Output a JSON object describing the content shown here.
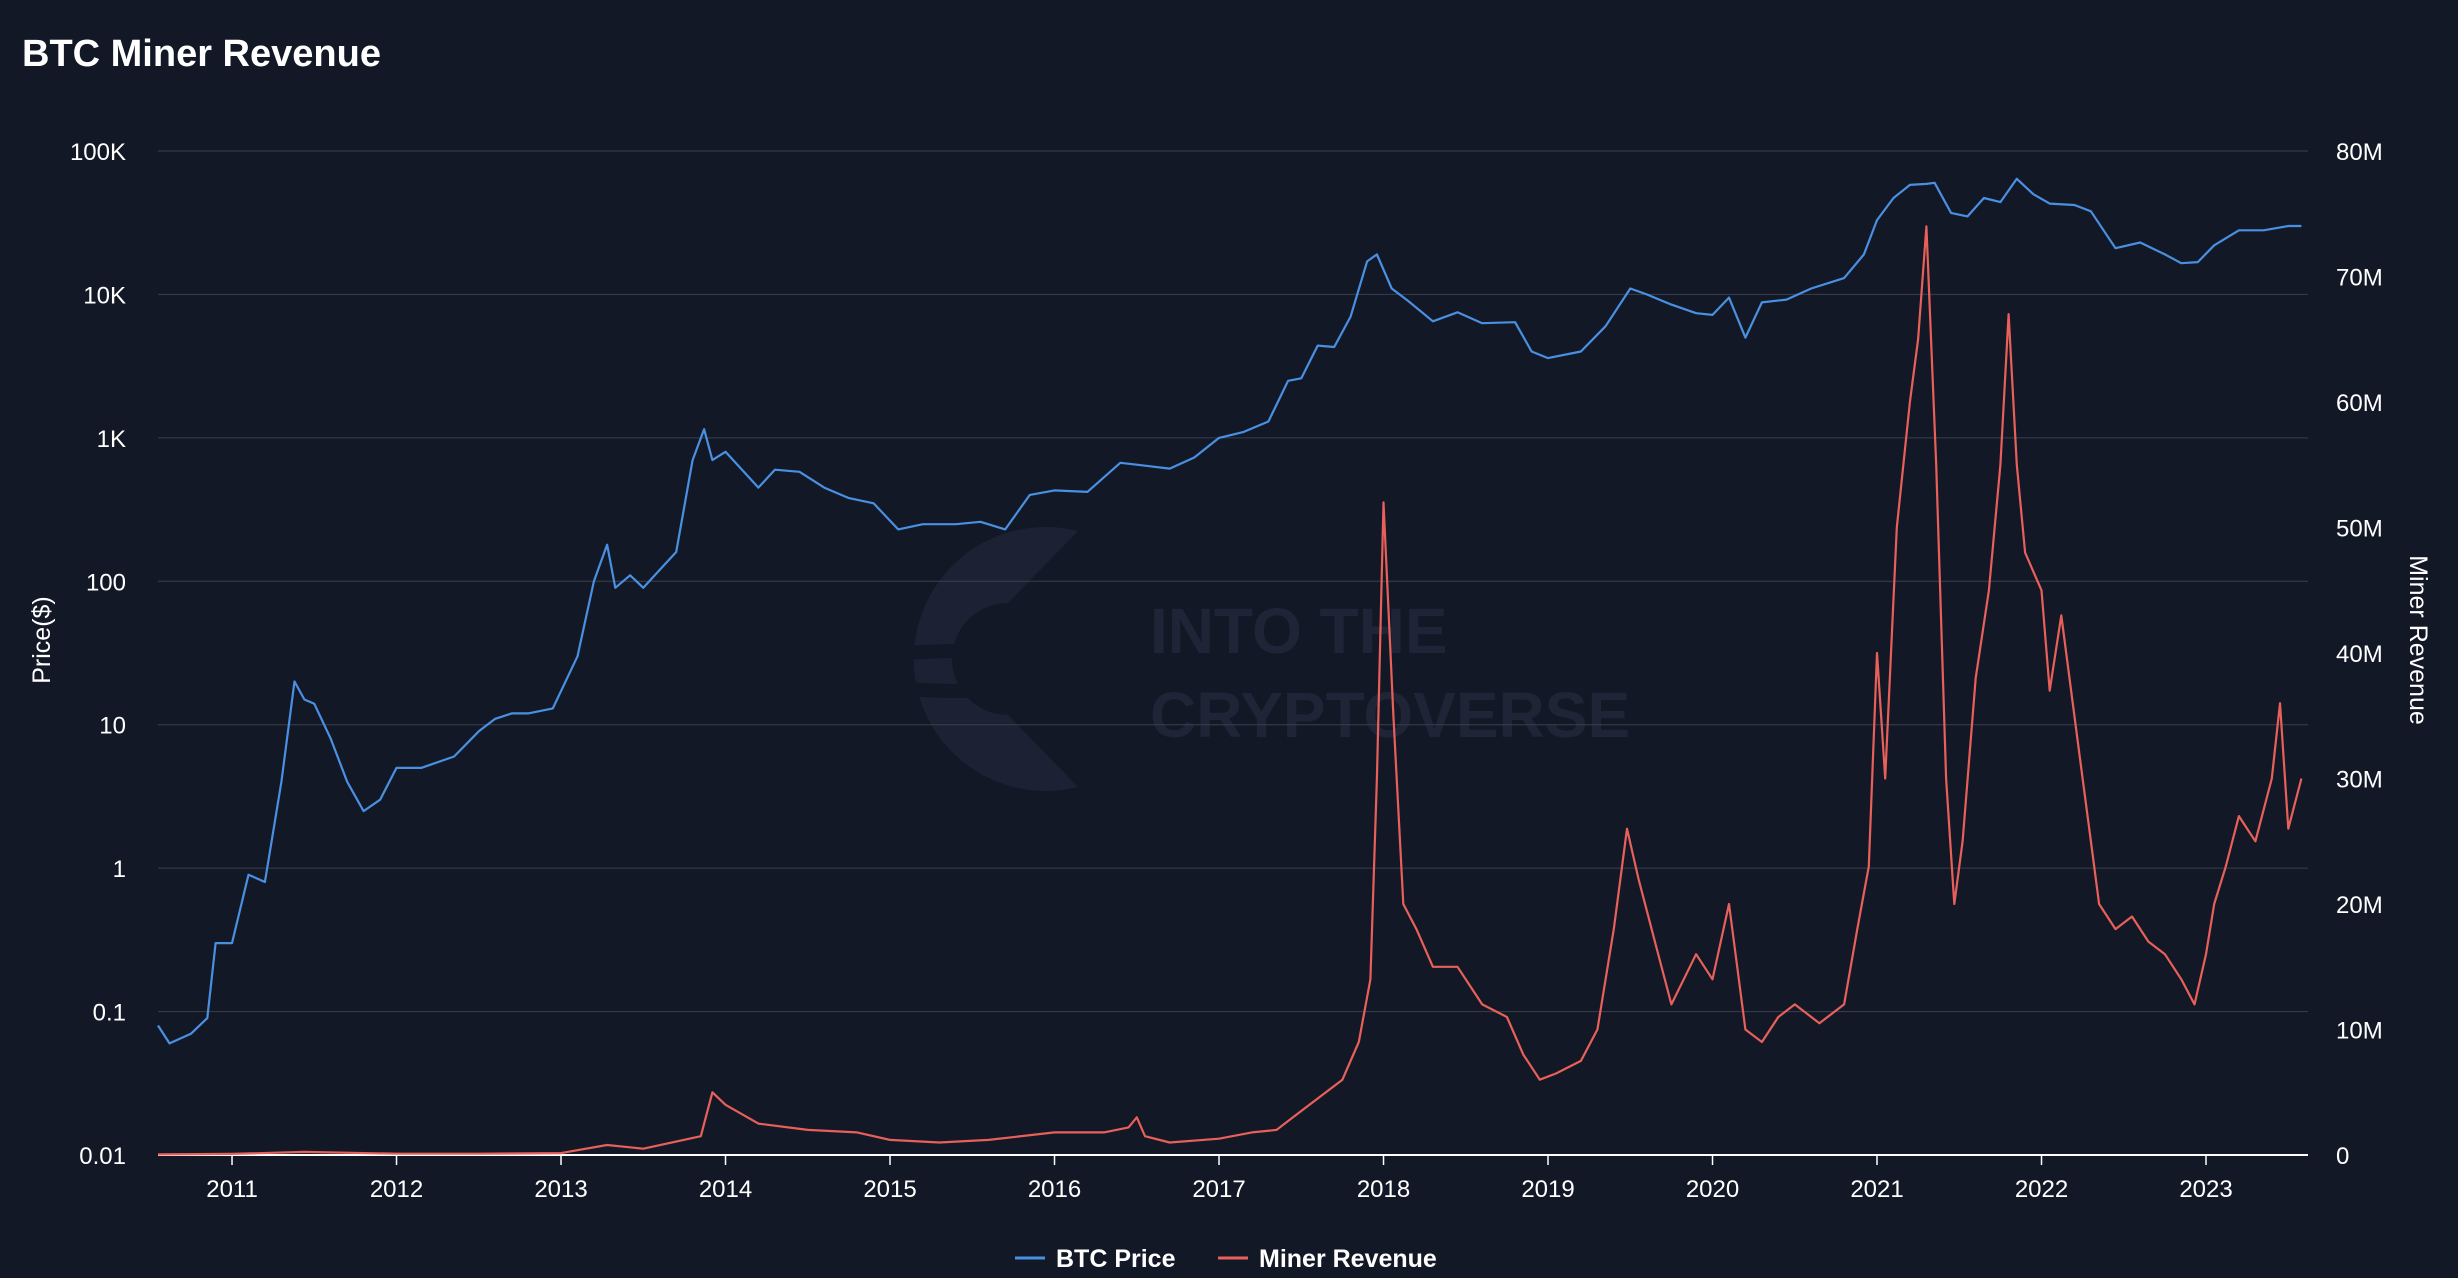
{
  "chart_data": {
    "type": "line",
    "title": "BTC Miner Revenue",
    "watermark": [
      "INTO THE",
      "CRYPTOVERSE"
    ],
    "colors": {
      "background": "#131826",
      "grid": "#3a3f4c",
      "price": "#4a90e2",
      "revenue": "#e8605a"
    },
    "x_ticks": [
      "2011",
      "2012",
      "2013",
      "2014",
      "2015",
      "2016",
      "2017",
      "2018",
      "2019",
      "2020",
      "2021",
      "2022",
      "2023"
    ],
    "x_range": [
      2010.55,
      2023.62
    ],
    "y_left": {
      "label": "Price($)",
      "scale": "log",
      "range": [
        0.01,
        100000
      ],
      "ticks": [
        "0.01",
        "0.1",
        "1",
        "10",
        "100",
        "1K",
        "10K",
        "100K"
      ]
    },
    "y_right": {
      "label": "Miner Revenue",
      "scale": "linear",
      "range": [
        0,
        80000000
      ],
      "ticks": [
        "0",
        "10M",
        "20M",
        "30M",
        "40M",
        "50M",
        "60M",
        "70M",
        "80M"
      ]
    },
    "legend": {
      "position": "bottom-center",
      "items": [
        "BTC Price",
        "Miner Revenue"
      ]
    },
    "grid": true,
    "series": [
      {
        "name": "BTC Price",
        "axis": "left",
        "x": [
          2010.55,
          2010.62,
          2010.75,
          2010.85,
          2010.9,
          2011.0,
          2011.1,
          2011.2,
          2011.3,
          2011.38,
          2011.44,
          2011.5,
          2011.6,
          2011.7,
          2011.8,
          2011.9,
          2012.0,
          2012.15,
          2012.35,
          2012.5,
          2012.6,
          2012.7,
          2012.8,
          2012.95,
          2013.1,
          2013.2,
          2013.28,
          2013.33,
          2013.42,
          2013.5,
          2013.6,
          2013.7,
          2013.8,
          2013.87,
          2013.92,
          2014.0,
          2014.1,
          2014.2,
          2014.3,
          2014.45,
          2014.6,
          2014.75,
          2014.9,
          2015.05,
          2015.2,
          2015.4,
          2015.55,
          2015.7,
          2015.85,
          2016.0,
          2016.2,
          2016.4,
          2016.5,
          2016.7,
          2016.85,
          2017.0,
          2017.15,
          2017.3,
          2017.42,
          2017.5,
          2017.6,
          2017.7,
          2017.8,
          2017.9,
          2017.96,
          2018.05,
          2018.15,
          2018.3,
          2018.45,
          2018.6,
          2018.8,
          2018.9,
          2019.0,
          2019.2,
          2019.35,
          2019.5,
          2019.6,
          2019.75,
          2019.9,
          2020.0,
          2020.1,
          2020.2,
          2020.3,
          2020.45,
          2020.6,
          2020.8,
          2020.92,
          2021.0,
          2021.1,
          2021.2,
          2021.3,
          2021.35,
          2021.45,
          2021.55,
          2021.65,
          2021.75,
          2021.85,
          2021.95,
          2022.05,
          2022.2,
          2022.3,
          2022.45,
          2022.6,
          2022.75,
          2022.85,
          2022.95,
          2023.05,
          2023.2,
          2023.35,
          2023.5,
          2023.58
        ],
        "y": [
          0.08,
          0.06,
          0.07,
          0.09,
          0.3,
          0.3,
          0.9,
          0.8,
          4,
          20,
          15,
          14,
          8,
          4,
          2.5,
          3,
          5,
          5,
          6,
          9,
          11,
          12,
          12,
          13,
          30,
          100,
          180,
          90,
          110,
          90,
          120,
          160,
          700,
          1150,
          700,
          800,
          600,
          450,
          600,
          580,
          450,
          380,
          350,
          230,
          250,
          250,
          260,
          230,
          400,
          430,
          420,
          670,
          650,
          610,
          730,
          1000,
          1100,
          1300,
          2500,
          2600,
          4400,
          4300,
          7000,
          17000,
          19000,
          11000,
          9000,
          6500,
          7500,
          6300,
          6400,
          4000,
          3600,
          4000,
          6000,
          11000,
          10000,
          8500,
          7400,
          7200,
          9500,
          5000,
          8800,
          9200,
          11000,
          13000,
          19000,
          33000,
          47000,
          58000,
          59000,
          60000,
          37000,
          35000,
          47000,
          44000,
          64000,
          50000,
          43000,
          42000,
          38000,
          21000,
          23000,
          19000,
          16500,
          16800,
          22000,
          28000,
          28000,
          30000,
          30000
        ]
      },
      {
        "name": "Miner Revenue",
        "axis": "right",
        "x": [
          2010.55,
          2011.0,
          2011.44,
          2012.0,
          2012.5,
          2013.0,
          2013.28,
          2013.5,
          2013.85,
          2013.92,
          2014.0,
          2014.2,
          2014.5,
          2014.8,
          2015.0,
          2015.3,
          2015.6,
          2016.0,
          2016.3,
          2016.45,
          2016.5,
          2016.55,
          2016.7,
          2017.0,
          2017.2,
          2017.35,
          2017.45,
          2017.6,
          2017.75,
          2017.85,
          2017.92,
          2017.96,
          2018.0,
          2018.06,
          2018.12,
          2018.2,
          2018.3,
          2018.45,
          2018.6,
          2018.75,
          2018.85,
          2018.95,
          2019.05,
          2019.2,
          2019.3,
          2019.4,
          2019.48,
          2019.55,
          2019.65,
          2019.75,
          2019.9,
          2020.0,
          2020.1,
          2020.2,
          2020.3,
          2020.4,
          2020.5,
          2020.65,
          2020.8,
          2020.88,
          2020.95,
          2021.0,
          2021.05,
          2021.12,
          2021.2,
          2021.25,
          2021.3,
          2021.36,
          2021.42,
          2021.47,
          2021.52,
          2021.6,
          2021.68,
          2021.75,
          2021.8,
          2021.85,
          2021.9,
          2022.0,
          2022.05,
          2022.12,
          2022.2,
          2022.25,
          2022.3,
          2022.35,
          2022.45,
          2022.55,
          2022.65,
          2022.75,
          2022.85,
          2022.93,
          2023.0,
          2023.05,
          2023.12,
          2023.2,
          2023.3,
          2023.4,
          2023.45,
          2023.5,
          2023.58
        ],
        "y": [
          50000,
          90000,
          250000,
          100000,
          100000,
          150000,
          800000,
          500000,
          1500000,
          5000000,
          4000000,
          2500000,
          2000000,
          1800000,
          1200000,
          1000000,
          1200000,
          1800000,
          1800000,
          2200000,
          3000000,
          1500000,
          1000000,
          1300000,
          1800000,
          2000000,
          3000000,
          4500000,
          6000000,
          9000000,
          14000000,
          30000000,
          52000000,
          35000000,
          20000000,
          18000000,
          15000000,
          15000000,
          12000000,
          11000000,
          8000000,
          6000000,
          6500000,
          7500000,
          10000000,
          18000000,
          26000000,
          22000000,
          17000000,
          12000000,
          16000000,
          14000000,
          20000000,
          10000000,
          9000000,
          11000000,
          12000000,
          10500000,
          12000000,
          18000000,
          23000000,
          40000000,
          30000000,
          50000000,
          60000000,
          65000000,
          74000000,
          55000000,
          30000000,
          20000000,
          25000000,
          38000000,
          45000000,
          55000000,
          67000000,
          55000000,
          48000000,
          45000000,
          37000000,
          43000000,
          35000000,
          30000000,
          25000000,
          20000000,
          18000000,
          19000000,
          17000000,
          16000000,
          14000000,
          12000000,
          16000000,
          20000000,
          23000000,
          27000000,
          25000000,
          30000000,
          36000000,
          26000000,
          30000000
        ]
      }
    ]
  }
}
